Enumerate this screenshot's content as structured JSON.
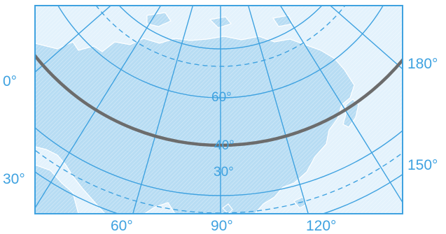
{
  "map": {
    "projection": "polar conic",
    "colors": {
      "background": "#ffffff",
      "frame": "#3fa2e0",
      "land": "#b7dcf3",
      "sea": "#e3f2fc",
      "coast": "#ffffff",
      "grid": "#3fa2e0",
      "label": "#3fa2e0",
      "highlight_arc": "#6c6c6c"
    },
    "labels": {
      "lon_0": "0°",
      "lon_30": "30°",
      "lon_60": "60°",
      "lon_90": "90°",
      "lon_120": "120°",
      "lon_150": "150°",
      "lon_180": "180°",
      "lat_60": "60°",
      "lat_40": "40°",
      "lat_30": "30°"
    },
    "features": {
      "solid_parallels": [
        "60°",
        "30°"
      ],
      "dashed_parallels": "2",
      "highlight": "grey arc parallel near 40°"
    }
  }
}
